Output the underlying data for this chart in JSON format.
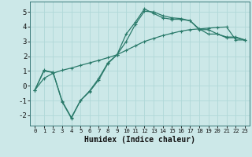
{
  "xlabel": "Humidex (Indice chaleur)",
  "background_color": "#cce8e8",
  "grid_color": "#b0d8d8",
  "line_color": "#2a7a6a",
  "xlim": [
    -0.5,
    23.5
  ],
  "ylim": [
    -2.7,
    5.7
  ],
  "yticks": [
    -2,
    -1,
    0,
    1,
    2,
    3,
    4,
    5
  ],
  "xticks": [
    0,
    1,
    2,
    3,
    4,
    5,
    6,
    7,
    8,
    9,
    10,
    11,
    12,
    13,
    14,
    15,
    16,
    17,
    18,
    19,
    20,
    21,
    22,
    23
  ],
  "line1_x": [
    0,
    1,
    2,
    3,
    4,
    5,
    6,
    7,
    8,
    9,
    10,
    11,
    12,
    13,
    14,
    15,
    16,
    17,
    18,
    19,
    20,
    21,
    22,
    23
  ],
  "line1_y": [
    -0.3,
    1.0,
    0.9,
    -1.1,
    -2.2,
    -1.0,
    -0.4,
    0.4,
    1.5,
    2.1,
    3.5,
    4.3,
    5.2,
    4.9,
    4.6,
    4.5,
    4.5,
    4.4,
    3.8,
    3.8,
    3.5,
    3.3,
    3.3,
    3.1
  ],
  "line2_x": [
    0,
    1,
    2,
    3,
    4,
    5,
    6,
    7,
    8,
    9,
    10,
    11,
    12,
    13,
    14,
    15,
    16,
    17,
    18,
    19,
    20,
    21,
    22,
    23
  ],
  "line2_y": [
    -0.3,
    1.05,
    0.9,
    -1.05,
    -2.15,
    -1.0,
    -0.35,
    0.5,
    1.55,
    2.1,
    3.0,
    4.15,
    5.05,
    5.0,
    4.75,
    4.6,
    4.55,
    4.4,
    3.85,
    3.5,
    3.5,
    3.25,
    3.25,
    3.1
  ],
  "line3_x": [
    0,
    1,
    2,
    3,
    4,
    5,
    6,
    7,
    8,
    9,
    10,
    11,
    12,
    13,
    14,
    15,
    16,
    17,
    18,
    19,
    20,
    21,
    22,
    23
  ],
  "line3_y": [
    -0.3,
    0.5,
    0.85,
    1.05,
    1.2,
    1.38,
    1.55,
    1.72,
    1.9,
    2.1,
    2.4,
    2.7,
    3.0,
    3.2,
    3.4,
    3.55,
    3.7,
    3.8,
    3.85,
    3.9,
    3.95,
    3.98,
    3.1,
    3.1
  ],
  "marker": "+",
  "markersize": 3,
  "linewidth": 0.9,
  "tick_fontsize": 6,
  "xlabel_fontsize": 7
}
